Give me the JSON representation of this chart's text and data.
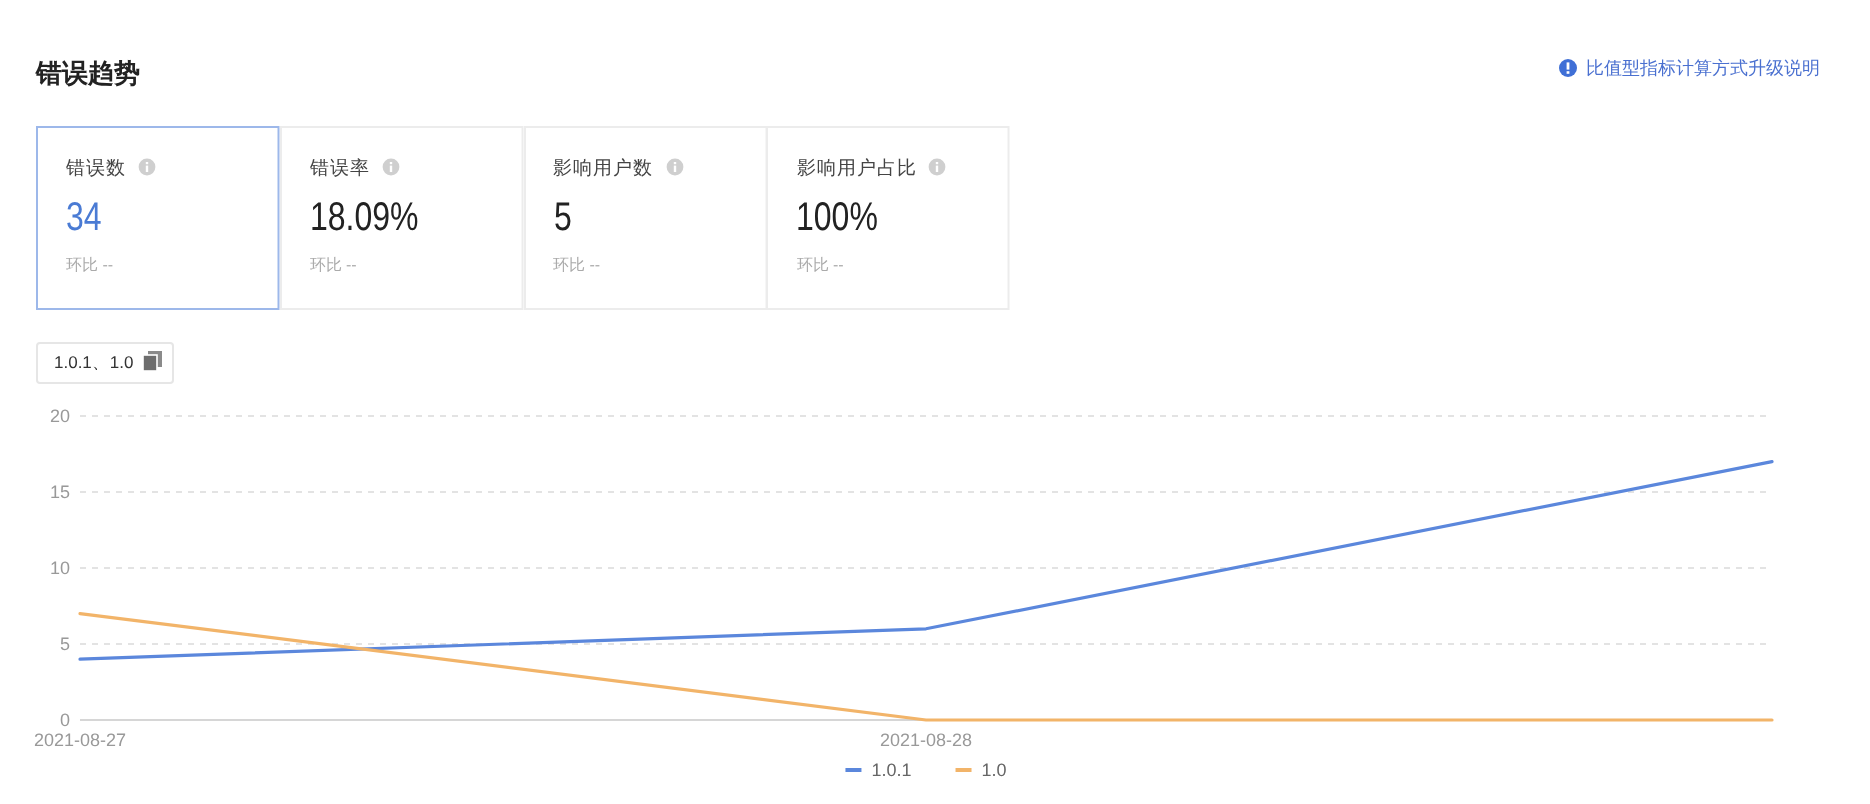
{
  "chart_data": [
    {
      "type": "other",
      "title": "错误趋势",
      "categories": [
        "错误数",
        "错误率",
        "影响用户数",
        "影响用户占比"
      ],
      "value_labels": [
        "34",
        "18.09%",
        "5",
        "100%"
      ],
      "colors": [
        "#4a7bd4",
        "#222222",
        "#222222",
        "#222222"
      ],
      "annotations": [
        "环比 --",
        "环比 --",
        "环比 --",
        "环比 --",
        "比值型指标计算方式升级说明"
      ]
    },
    {
      "type": "line",
      "annotations": [
        "1.0.1、1.0"
      ],
      "categories": [
        "2021-08-27",
        "2021-08-28",
        null
      ],
      "series": [
        {
          "name": "1.0.1",
          "color": "#5b87dc",
          "values": [
            4,
            6,
            17
          ]
        },
        {
          "name": "1.0",
          "color": "#f2b469",
          "values": [
            7,
            0,
            0
          ]
        }
      ],
      "ylim": [
        0,
        20
      ],
      "yticks": [
        0,
        5,
        10,
        15,
        20
      ],
      "grid": "y",
      "legend": "bottom",
      "marker": "none",
      "line_style": "solid"
    }
  ]
}
